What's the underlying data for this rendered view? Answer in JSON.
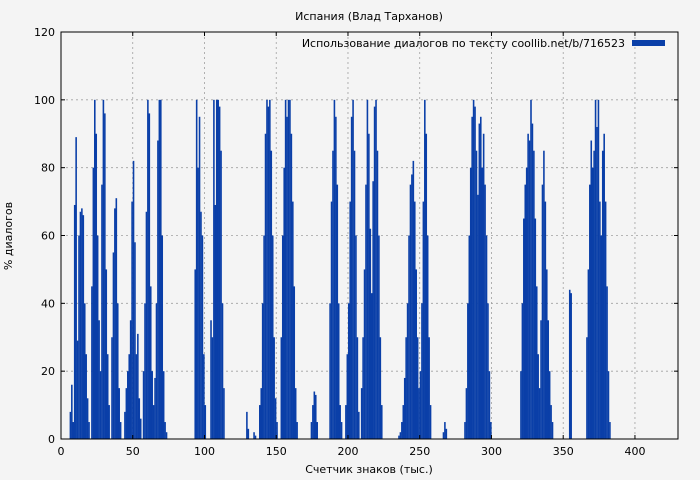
{
  "chart_data": {
    "type": "bar",
    "title": "Испания (Влад Тарханов)",
    "xlabel": "Счетчик знаков (тыс.)",
    "ylabel": "% диалогов",
    "xlim": [
      0,
      430
    ],
    "ylim": [
      0,
      120
    ],
    "xticks": [
      0,
      50,
      100,
      150,
      200,
      250,
      300,
      350,
      400
    ],
    "yticks": [
      0,
      20,
      40,
      60,
      80,
      100,
      120
    ],
    "grid": true,
    "legend_position": "top-right",
    "colors": {
      "series": "#0a3fa8",
      "background": "#f4f4f4",
      "plot_background": "#f4f4f4"
    },
    "series": [
      {
        "name": "Использование диалогов по тексту coollib.net/b/716523",
        "bar_width": 1,
        "points": [
          [
            6,
            8
          ],
          [
            7,
            16
          ],
          [
            8,
            5
          ],
          [
            9,
            69
          ],
          [
            10,
            89
          ],
          [
            11,
            29
          ],
          [
            12,
            60
          ],
          [
            13,
            67
          ],
          [
            14,
            68
          ],
          [
            15,
            66
          ],
          [
            16,
            40
          ],
          [
            17,
            25
          ],
          [
            18,
            12
          ],
          [
            19,
            5
          ],
          [
            21,
            45
          ],
          [
            22,
            80
          ],
          [
            23,
            100
          ],
          [
            24,
            90
          ],
          [
            25,
            60
          ],
          [
            26,
            35
          ],
          [
            27,
            20
          ],
          [
            28,
            75
          ],
          [
            29,
            100
          ],
          [
            30,
            96
          ],
          [
            31,
            50
          ],
          [
            32,
            25
          ],
          [
            33,
            10
          ],
          [
            35,
            30
          ],
          [
            36,
            55
          ],
          [
            37,
            68
          ],
          [
            38,
            71
          ],
          [
            39,
            40
          ],
          [
            40,
            15
          ],
          [
            41,
            5
          ],
          [
            44,
            8
          ],
          [
            45,
            15
          ],
          [
            46,
            20
          ],
          [
            47,
            25
          ],
          [
            48,
            35
          ],
          [
            49,
            70
          ],
          [
            50,
            82
          ],
          [
            51,
            58
          ],
          [
            52,
            25
          ],
          [
            53,
            31
          ],
          [
            54,
            12
          ],
          [
            55,
            6
          ],
          [
            57,
            20
          ],
          [
            58,
            40
          ],
          [
            59,
            67
          ],
          [
            60,
            100
          ],
          [
            61,
            96
          ],
          [
            62,
            45
          ],
          [
            63,
            20
          ],
          [
            64,
            10
          ],
          [
            65,
            18
          ],
          [
            66,
            40
          ],
          [
            67,
            88
          ],
          [
            68,
            100
          ],
          [
            69,
            100
          ],
          [
            70,
            60
          ],
          [
            71,
            20
          ],
          [
            72,
            5
          ],
          [
            73,
            2
          ],
          [
            93,
            50
          ],
          [
            94,
            100
          ],
          [
            95,
            80
          ],
          [
            96,
            95
          ],
          [
            97,
            67
          ],
          [
            98,
            60
          ],
          [
            99,
            25
          ],
          [
            100,
            10
          ],
          [
            104,
            35
          ],
          [
            105,
            30
          ],
          [
            106,
            100
          ],
          [
            107,
            69
          ],
          [
            108,
            100
          ],
          [
            109,
            100
          ],
          [
            110,
            98
          ],
          [
            111,
            85
          ],
          [
            112,
            40
          ],
          [
            113,
            15
          ],
          [
            129,
            8
          ],
          [
            130,
            3
          ],
          [
            134,
            2
          ],
          [
            135,
            1
          ],
          [
            138,
            10
          ],
          [
            139,
            15
          ],
          [
            140,
            40
          ],
          [
            141,
            60
          ],
          [
            142,
            90
          ],
          [
            143,
            100
          ],
          [
            144,
            98
          ],
          [
            145,
            100
          ],
          [
            146,
            85
          ],
          [
            147,
            60
          ],
          [
            148,
            30
          ],
          [
            149,
            12
          ],
          [
            150,
            5
          ],
          [
            153,
            30
          ],
          [
            154,
            60
          ],
          [
            155,
            80
          ],
          [
            156,
            100
          ],
          [
            157,
            95
          ],
          [
            158,
            100
          ],
          [
            159,
            100
          ],
          [
            160,
            90
          ],
          [
            161,
            70
          ],
          [
            162,
            45
          ],
          [
            163,
            15
          ],
          [
            164,
            5
          ],
          [
            174,
            5
          ],
          [
            175,
            10
          ],
          [
            176,
            14
          ],
          [
            177,
            13
          ],
          [
            178,
            5
          ],
          [
            187,
            40
          ],
          [
            188,
            70
          ],
          [
            189,
            85
          ],
          [
            190,
            100
          ],
          [
            191,
            95
          ],
          [
            192,
            75
          ],
          [
            193,
            40
          ],
          [
            194,
            10
          ],
          [
            195,
            5
          ],
          [
            198,
            10
          ],
          [
            199,
            25
          ],
          [
            200,
            40
          ],
          [
            201,
            70
          ],
          [
            202,
            95
          ],
          [
            203,
            100
          ],
          [
            204,
            85
          ],
          [
            205,
            60
          ],
          [
            206,
            30
          ],
          [
            207,
            8
          ],
          [
            209,
            15
          ],
          [
            210,
            30
          ],
          [
            211,
            50
          ],
          [
            212,
            75
          ],
          [
            213,
            100
          ],
          [
            214,
            90
          ],
          [
            215,
            62
          ],
          [
            216,
            43
          ],
          [
            217,
            76
          ],
          [
            218,
            98
          ],
          [
            219,
            100
          ],
          [
            220,
            85
          ],
          [
            221,
            60
          ],
          [
            222,
            30
          ],
          [
            223,
            10
          ],
          [
            235,
            1
          ],
          [
            236,
            2
          ],
          [
            237,
            5
          ],
          [
            238,
            10
          ],
          [
            239,
            18
          ],
          [
            240,
            30
          ],
          [
            241,
            40
          ],
          [
            242,
            60
          ],
          [
            243,
            75
          ],
          [
            244,
            78
          ],
          [
            245,
            82
          ],
          [
            246,
            70
          ],
          [
            247,
            50
          ],
          [
            248,
            30
          ],
          [
            249,
            15
          ],
          [
            250,
            20
          ],
          [
            251,
            40
          ],
          [
            252,
            70
          ],
          [
            253,
            100
          ],
          [
            254,
            90
          ],
          [
            255,
            60
          ],
          [
            256,
            30
          ],
          [
            257,
            10
          ],
          [
            266,
            2
          ],
          [
            267,
            5
          ],
          [
            268,
            3
          ],
          [
            281,
            5
          ],
          [
            282,
            15
          ],
          [
            283,
            40
          ],
          [
            284,
            60
          ],
          [
            285,
            80
          ],
          [
            286,
            95
          ],
          [
            287,
            100
          ],
          [
            288,
            98
          ],
          [
            289,
            85
          ],
          [
            290,
            72
          ],
          [
            291,
            93
          ],
          [
            292,
            95
          ],
          [
            293,
            80
          ],
          [
            294,
            90
          ],
          [
            295,
            75
          ],
          [
            296,
            60
          ],
          [
            297,
            40
          ],
          [
            298,
            20
          ],
          [
            299,
            5
          ],
          [
            320,
            20
          ],
          [
            321,
            40
          ],
          [
            322,
            65
          ],
          [
            323,
            75
          ],
          [
            324,
            80
          ],
          [
            325,
            90
          ],
          [
            326,
            88
          ],
          [
            327,
            100
          ],
          [
            328,
            93
          ],
          [
            329,
            85
          ],
          [
            330,
            65
          ],
          [
            331,
            45
          ],
          [
            332,
            25
          ],
          [
            333,
            15
          ],
          [
            334,
            35
          ],
          [
            335,
            75
          ],
          [
            336,
            85
          ],
          [
            337,
            70
          ],
          [
            338,
            50
          ],
          [
            339,
            35
          ],
          [
            340,
            20
          ],
          [
            341,
            10
          ],
          [
            342,
            5
          ],
          [
            354,
            44
          ],
          [
            355,
            43
          ],
          [
            366,
            30
          ],
          [
            367,
            50
          ],
          [
            368,
            75
          ],
          [
            369,
            88
          ],
          [
            370,
            80
          ],
          [
            371,
            85
          ],
          [
            372,
            100
          ],
          [
            373,
            92
          ],
          [
            374,
            100
          ],
          [
            375,
            70
          ],
          [
            376,
            60
          ],
          [
            377,
            85
          ],
          [
            378,
            90
          ],
          [
            379,
            70
          ],
          [
            380,
            45
          ],
          [
            381,
            20
          ],
          [
            382,
            5
          ]
        ]
      }
    ]
  }
}
